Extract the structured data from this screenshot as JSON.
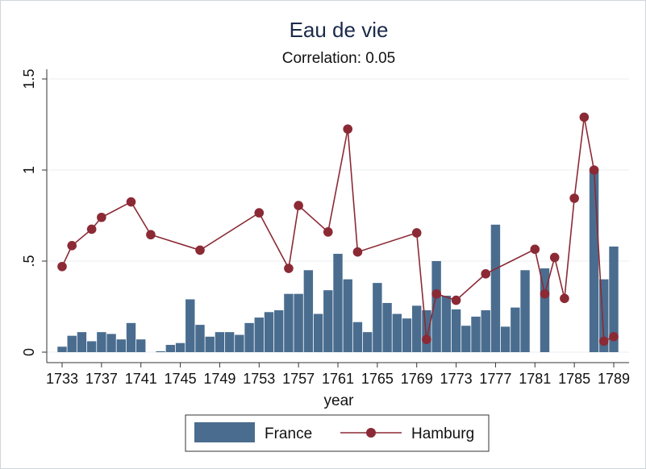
{
  "chart_data": {
    "type": "bar+line",
    "title": "Eau de vie",
    "subtitle": "Correlation: 0.05",
    "xlabel": "year",
    "ylabel": "",
    "ylim": [
      0,
      1.5
    ],
    "yticks": [
      {
        "value": 0,
        "label": "0"
      },
      {
        "value": 0.5,
        "label": ".5"
      },
      {
        "value": 1,
        "label": "1"
      },
      {
        "value": 1.5,
        "label": "1.5"
      }
    ],
    "xticks": [
      1733,
      1737,
      1741,
      1745,
      1749,
      1753,
      1757,
      1761,
      1765,
      1769,
      1773,
      1777,
      1781,
      1785,
      1789
    ],
    "grid": true,
    "legend_position": "bottom",
    "colors": {
      "france": "#4a6d8f",
      "hamburg": "#8b2a35",
      "grid": "#e8edf1",
      "title": "#1b2a4a"
    },
    "series": [
      {
        "name": "France",
        "kind": "bar",
        "points": [
          {
            "x": 1733,
            "y": 0.03
          },
          {
            "x": 1734,
            "y": 0.09
          },
          {
            "x": 1735,
            "y": 0.11
          },
          {
            "x": 1736,
            "y": 0.06
          },
          {
            "x": 1737,
            "y": 0.11
          },
          {
            "x": 1738,
            "y": 0.1
          },
          {
            "x": 1739,
            "y": 0.07
          },
          {
            "x": 1740,
            "y": 0.16
          },
          {
            "x": 1741,
            "y": 0.07
          },
          {
            "x": 1743,
            "y": 0.005
          },
          {
            "x": 1744,
            "y": 0.04
          },
          {
            "x": 1745,
            "y": 0.05
          },
          {
            "x": 1746,
            "y": 0.29
          },
          {
            "x": 1747,
            "y": 0.15
          },
          {
            "x": 1748,
            "y": 0.085
          },
          {
            "x": 1749,
            "y": 0.11
          },
          {
            "x": 1750,
            "y": 0.11
          },
          {
            "x": 1751,
            "y": 0.095
          },
          {
            "x": 1752,
            "y": 0.16
          },
          {
            "x": 1753,
            "y": 0.19
          },
          {
            "x": 1754,
            "y": 0.22
          },
          {
            "x": 1755,
            "y": 0.23
          },
          {
            "x": 1756,
            "y": 0.32
          },
          {
            "x": 1757,
            "y": 0.32
          },
          {
            "x": 1758,
            "y": 0.45
          },
          {
            "x": 1759,
            "y": 0.21
          },
          {
            "x": 1760,
            "y": 0.34
          },
          {
            "x": 1761,
            "y": 0.54
          },
          {
            "x": 1762,
            "y": 0.4
          },
          {
            "x": 1763,
            "y": 0.165
          },
          {
            "x": 1764,
            "y": 0.11
          },
          {
            "x": 1765,
            "y": 0.38
          },
          {
            "x": 1766,
            "y": 0.27
          },
          {
            "x": 1767,
            "y": 0.21
          },
          {
            "x": 1768,
            "y": 0.185
          },
          {
            "x": 1769,
            "y": 0.255
          },
          {
            "x": 1770,
            "y": 0.23
          },
          {
            "x": 1771,
            "y": 0.5
          },
          {
            "x": 1772,
            "y": 0.31
          },
          {
            "x": 1773,
            "y": 0.235
          },
          {
            "x": 1774,
            "y": 0.145
          },
          {
            "x": 1775,
            "y": 0.195
          },
          {
            "x": 1776,
            "y": 0.23
          },
          {
            "x": 1777,
            "y": 0.7
          },
          {
            "x": 1778,
            "y": 0.14
          },
          {
            "x": 1779,
            "y": 0.245
          },
          {
            "x": 1780,
            "y": 0.45
          },
          {
            "x": 1782,
            "y": 0.46
          },
          {
            "x": 1787,
            "y": 1.0
          },
          {
            "x": 1788,
            "y": 0.4
          },
          {
            "x": 1789,
            "y": 0.58
          }
        ]
      },
      {
        "name": "Hamburg",
        "kind": "line",
        "points": [
          {
            "x": 1733,
            "y": 0.47
          },
          {
            "x": 1734,
            "y": 0.585
          },
          {
            "x": 1736,
            "y": 0.675
          },
          {
            "x": 1737,
            "y": 0.74
          },
          {
            "x": 1740,
            "y": 0.825
          },
          {
            "x": 1742,
            "y": 0.645
          },
          {
            "x": 1747,
            "y": 0.56
          },
          {
            "x": 1753,
            "y": 0.765
          },
          {
            "x": 1756,
            "y": 0.46
          },
          {
            "x": 1757,
            "y": 0.805
          },
          {
            "x": 1760,
            "y": 0.66
          },
          {
            "x": 1762,
            "y": 1.225
          },
          {
            "x": 1763,
            "y": 0.55
          },
          {
            "x": 1769,
            "y": 0.655
          },
          {
            "x": 1770,
            "y": 0.07
          },
          {
            "x": 1771,
            "y": 0.32
          },
          {
            "x": 1773,
            "y": 0.285
          },
          {
            "x": 1776,
            "y": 0.43
          },
          {
            "x": 1781,
            "y": 0.565
          },
          {
            "x": 1782,
            "y": 0.32
          },
          {
            "x": 1783,
            "y": 0.52
          },
          {
            "x": 1784,
            "y": 0.295
          },
          {
            "x": 1785,
            "y": 0.845
          },
          {
            "x": 1786,
            "y": 1.29
          },
          {
            "x": 1787,
            "y": 1.0
          },
          {
            "x": 1788,
            "y": 0.06
          },
          {
            "x": 1789,
            "y": 0.085
          }
        ]
      }
    ]
  }
}
